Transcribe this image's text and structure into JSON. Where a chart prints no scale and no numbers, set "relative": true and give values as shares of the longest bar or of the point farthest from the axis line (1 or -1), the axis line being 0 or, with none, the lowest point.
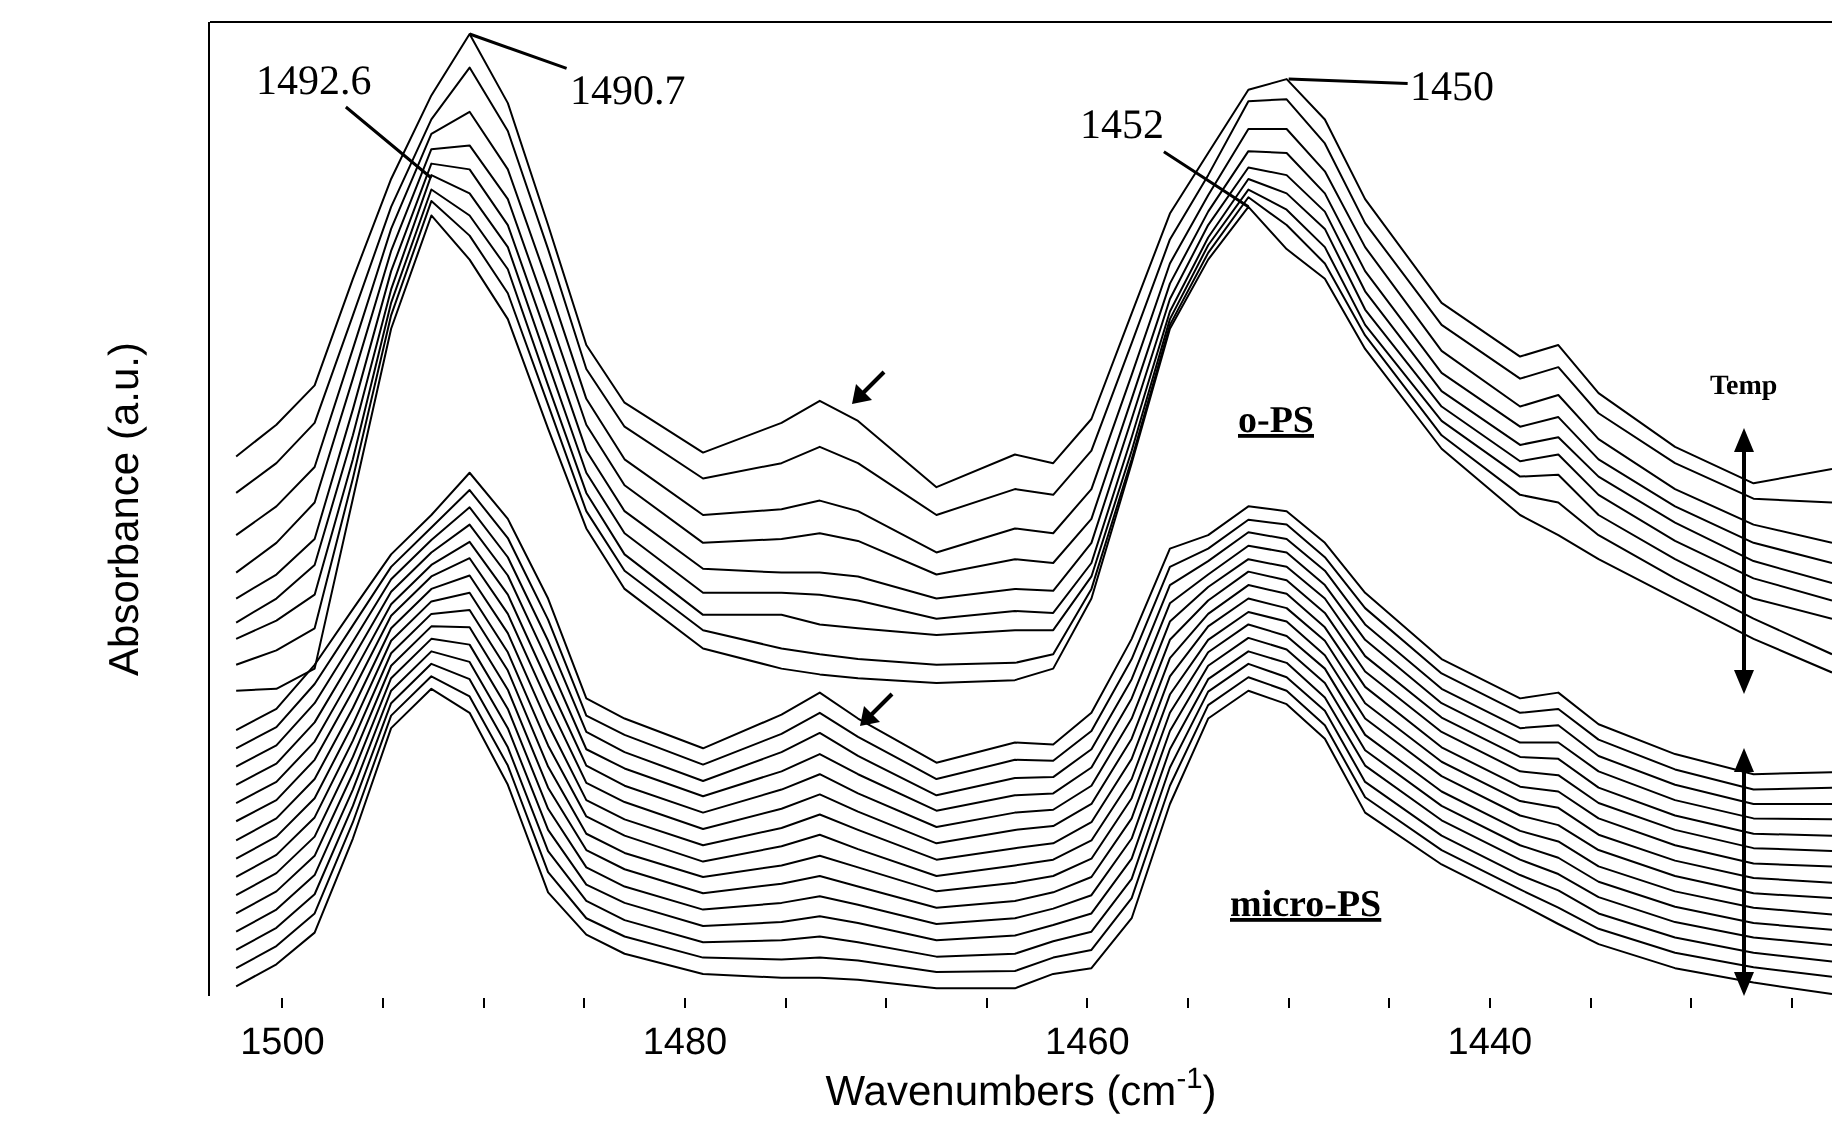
{
  "chart_data": {
    "type": "line",
    "relative": true,
    "xlabel": "Wavenumbers (cm$^{-1}$)",
    "ylabel": "Absorbance (a.u.)",
    "x": [
      1502.3,
      1500.3,
      1498.4,
      1496.5,
      1494.6,
      1492.6,
      1490.7,
      1488.8,
      1486.8,
      1484.9,
      1483.0,
      1479.1,
      1475.2,
      1473.3,
      1471.4,
      1467.5,
      1463.6,
      1461.7,
      1459.8,
      1457.8,
      1455.9,
      1454.0,
      1452.0,
      1450.1,
      1448.2,
      1446.2,
      1442.4,
      1438.5,
      1436.6,
      1434.6,
      1430.8,
      1426.9,
      1423.0
    ],
    "xlim": [
      1503.6,
      1423.0
    ],
    "xticks": [
      1500,
      {
        "value": 1495,
        "label": null
      },
      {
        "value": 1490,
        "label": null
      },
      {
        "value": 1485,
        "label": null
      },
      1480,
      {
        "value": 1475,
        "label": null
      },
      {
        "value": 1470,
        "label": null
      },
      {
        "value": 1465,
        "label": null
      },
      1460,
      {
        "value": 1455,
        "label": null
      },
      {
        "value": 1450,
        "label": null
      },
      {
        "value": 1445,
        "label": null
      },
      1440,
      {
        "value": 1435,
        "label": null
      },
      {
        "value": 1430,
        "label": null
      },
      {
        "value": 1425,
        "label": null
      }
    ],
    "annotations": [
      {
        "text": "1492.6",
        "x": 1492.6,
        "y": 0.85
      },
      {
        "text": "1490.7",
        "x": 1490.7,
        "y": 1
      },
      {
        "text": "1452",
        "x": 1452,
        "y": 0.82
      },
      {
        "text": "1450",
        "x": 1450,
        "y": 0.953
      },
      "o-PS",
      "micro-PS",
      "Temp"
    ],
    "series": [
      {
        "color": "#000000",
        "values": [
          0.56,
          0.593,
          0.634,
          0.745,
          0.849,
          0.936,
          1.0,
          0.928,
          0.801,
          0.676,
          0.616,
          0.564,
          0.595,
          0.618,
          0.597,
          0.528,
          0.562,
          0.553,
          0.599,
          0.709,
          0.813,
          0.876,
          0.942,
          0.953,
          0.911,
          0.828,
          0.72,
          0.664,
          0.676,
          0.626,
          0.57,
          0.532,
          0.547
        ]
      },
      {
        "color": "#000000",
        "values": [
          0.522,
          0.553,
          0.595,
          0.707,
          0.82,
          0.911,
          0.965,
          0.899,
          0.776,
          0.651,
          0.591,
          0.537,
          0.553,
          0.57,
          0.553,
          0.499,
          0.526,
          0.52,
          0.566,
          0.678,
          0.786,
          0.853,
          0.93,
          0.932,
          0.886,
          0.803,
          0.697,
          0.641,
          0.653,
          0.605,
          0.553,
          0.516,
          0.512
        ]
      },
      {
        "color": "#000000",
        "values": [
          0.478,
          0.508,
          0.549,
          0.672,
          0.797,
          0.896,
          0.919,
          0.859,
          0.74,
          0.62,
          0.557,
          0.499,
          0.505,
          0.514,
          0.503,
          0.46,
          0.485,
          0.48,
          0.526,
          0.645,
          0.761,
          0.832,
          0.901,
          0.901,
          0.857,
          0.778,
          0.67,
          0.612,
          0.624,
          0.578,
          0.526,
          0.489,
          0.47
        ]
      },
      {
        "color": "#000000",
        "values": [
          0.439,
          0.47,
          0.512,
          0.641,
          0.774,
          0.88,
          0.884,
          0.828,
          0.709,
          0.593,
          0.53,
          0.47,
          0.474,
          0.48,
          0.472,
          0.437,
          0.453,
          0.449,
          0.495,
          0.62,
          0.74,
          0.815,
          0.878,
          0.876,
          0.834,
          0.753,
          0.647,
          0.591,
          0.601,
          0.557,
          0.508,
          0.47,
          0.449
        ]
      },
      {
        "color": "#000000",
        "values": [
          0.412,
          0.437,
          0.474,
          0.609,
          0.753,
          0.865,
          0.859,
          0.801,
          0.682,
          0.566,
          0.503,
          0.443,
          0.439,
          0.439,
          0.435,
          0.412,
          0.422,
          0.42,
          0.47,
          0.599,
          0.724,
          0.801,
          0.861,
          0.853,
          0.815,
          0.732,
          0.628,
          0.572,
          0.58,
          0.539,
          0.491,
          0.451,
          0.428
        ]
      },
      {
        "color": "#000000",
        "values": [
          0.387,
          0.412,
          0.447,
          0.582,
          0.734,
          0.853,
          0.834,
          0.778,
          0.657,
          0.543,
          0.48,
          0.418,
          0.418,
          0.416,
          0.41,
          0.391,
          0.399,
          0.397,
          0.449,
          0.58,
          0.711,
          0.788,
          0.849,
          0.834,
          0.797,
          0.713,
          0.612,
          0.555,
          0.562,
          0.52,
          0.472,
          0.433,
          0.41
        ]
      },
      {
        "color": "#000000",
        "values": [
          0.37,
          0.389,
          0.416,
          0.557,
          0.72,
          0.838,
          0.811,
          0.755,
          0.634,
          0.522,
          0.458,
          0.395,
          0.395,
          0.385,
          0.381,
          0.374,
          0.379,
          0.379,
          0.435,
          0.566,
          0.703,
          0.78,
          0.838,
          0.817,
          0.778,
          0.697,
          0.597,
          0.539,
          0.541,
          0.499,
          0.453,
          0.412,
          0.391
        ]
      },
      {
        "color": "#000000",
        "values": [
          0.343,
          0.358,
          0.381,
          0.537,
          0.707,
          0.826,
          0.79,
          0.73,
          0.614,
          0.503,
          0.441,
          0.379,
          0.36,
          0.354,
          0.349,
          0.343,
          0.345,
          0.354,
          0.422,
          0.557,
          0.697,
          0.772,
          0.83,
          0.801,
          0.761,
          0.686,
          0.582,
          0.52,
          0.512,
          0.478,
          0.433,
          0.391,
          0.354
        ]
      },
      {
        "color": "#000000",
        "values": [
          0.316,
          0.318,
          0.339,
          0.516,
          0.693,
          0.811,
          0.765,
          0.703,
          0.589,
          0.485,
          0.422,
          0.36,
          0.339,
          0.333,
          0.329,
          0.324,
          0.327,
          0.339,
          0.412,
          0.553,
          0.693,
          0.765,
          0.82,
          0.776,
          0.745,
          0.672,
          0.568,
          0.499,
          0.478,
          0.453,
          0.412,
          0.37,
          0.335
        ]
      },
      {
        "color": "#000000",
        "values": [
          0.275,
          0.297,
          0.343,
          0.401,
          0.458,
          0.499,
          0.543,
          0.495,
          0.412,
          0.308,
          0.287,
          0.256,
          0.291,
          0.314,
          0.287,
          0.241,
          0.262,
          0.26,
          0.293,
          0.37,
          0.464,
          0.478,
          0.508,
          0.503,
          0.47,
          0.418,
          0.349,
          0.308,
          0.314,
          0.281,
          0.25,
          0.229,
          0.231
        ]
      },
      {
        "color": "#000000",
        "values": [
          0.256,
          0.278,
          0.323,
          0.384,
          0.445,
          0.486,
          0.525,
          0.475,
          0.39,
          0.29,
          0.27,
          0.239,
          0.271,
          0.293,
          0.268,
          0.224,
          0.244,
          0.243,
          0.274,
          0.349,
          0.445,
          0.464,
          0.494,
          0.489,
          0.455,
          0.402,
          0.334,
          0.293,
          0.297,
          0.265,
          0.234,
          0.213,
          0.215
        ]
      },
      {
        "color": "#000000",
        "values": [
          0.237,
          0.259,
          0.303,
          0.367,
          0.432,
          0.473,
          0.507,
          0.455,
          0.368,
          0.273,
          0.252,
          0.222,
          0.252,
          0.272,
          0.248,
          0.207,
          0.225,
          0.226,
          0.255,
          0.328,
          0.426,
          0.451,
          0.481,
          0.474,
          0.441,
          0.385,
          0.318,
          0.277,
          0.28,
          0.248,
          0.218,
          0.198,
          0.198
        ]
      },
      {
        "color": "#000000",
        "values": [
          0.218,
          0.24,
          0.283,
          0.35,
          0.419,
          0.46,
          0.489,
          0.436,
          0.346,
          0.255,
          0.235,
          0.206,
          0.232,
          0.25,
          0.229,
          0.191,
          0.207,
          0.209,
          0.236,
          0.308,
          0.407,
          0.437,
          0.467,
          0.46,
          0.426,
          0.369,
          0.303,
          0.262,
          0.262,
          0.232,
          0.202,
          0.183,
          0.182
        ]
      },
      {
        "color": "#000000",
        "values": [
          0.199,
          0.221,
          0.263,
          0.333,
          0.406,
          0.447,
          0.471,
          0.416,
          0.324,
          0.238,
          0.217,
          0.189,
          0.213,
          0.229,
          0.209,
          0.174,
          0.189,
          0.192,
          0.217,
          0.287,
          0.388,
          0.424,
          0.453,
          0.445,
          0.412,
          0.352,
          0.288,
          0.247,
          0.245,
          0.215,
          0.186,
          0.167,
          0.165
        ]
      },
      {
        "color": "#000000",
        "values": [
          0.18,
          0.202,
          0.244,
          0.316,
          0.394,
          0.435,
          0.454,
          0.396,
          0.303,
          0.22,
          0.2,
          0.172,
          0.193,
          0.208,
          0.19,
          0.157,
          0.171,
          0.175,
          0.198,
          0.266,
          0.369,
          0.41,
          0.44,
          0.431,
          0.397,
          0.336,
          0.273,
          0.232,
          0.228,
          0.199,
          0.171,
          0.152,
          0.149
        ]
      },
      {
        "color": "#000000",
        "values": [
          0.16,
          0.183,
          0.224,
          0.298,
          0.381,
          0.422,
          0.436,
          0.376,
          0.281,
          0.202,
          0.182,
          0.155,
          0.173,
          0.187,
          0.171,
          0.14,
          0.152,
          0.157,
          0.179,
          0.245,
          0.35,
          0.396,
          0.426,
          0.417,
          0.382,
          0.32,
          0.257,
          0.216,
          0.211,
          0.183,
          0.155,
          0.136,
          0.133
        ]
      },
      {
        "color": "#000000",
        "values": [
          0.141,
          0.164,
          0.204,
          0.281,
          0.368,
          0.409,
          0.418,
          0.356,
          0.259,
          0.185,
          0.165,
          0.138,
          0.154,
          0.166,
          0.151,
          0.123,
          0.134,
          0.14,
          0.16,
          0.224,
          0.331,
          0.383,
          0.412,
          0.402,
          0.368,
          0.303,
          0.242,
          0.201,
          0.194,
          0.166,
          0.139,
          0.121,
          0.116
        ]
      },
      {
        "color": "#000000",
        "values": [
          0.122,
          0.145,
          0.184,
          0.264,
          0.355,
          0.396,
          0.4,
          0.337,
          0.237,
          0.167,
          0.147,
          0.122,
          0.134,
          0.144,
          0.132,
          0.107,
          0.116,
          0.123,
          0.141,
          0.204,
          0.312,
          0.369,
          0.398,
          0.388,
          0.353,
          0.287,
          0.227,
          0.186,
          0.176,
          0.15,
          0.123,
          0.105,
          0.1
        ]
      },
      {
        "color": "#000000",
        "values": [
          0.103,
          0.126,
          0.164,
          0.247,
          0.342,
          0.383,
          0.382,
          0.317,
          0.215,
          0.15,
          0.13,
          0.105,
          0.115,
          0.123,
          0.112,
          0.09,
          0.097,
          0.106,
          0.122,
          0.183,
          0.293,
          0.356,
          0.385,
          0.373,
          0.339,
          0.27,
          0.211,
          0.17,
          0.159,
          0.133,
          0.107,
          0.09,
          0.083
        ]
      },
      {
        "color": "#000000",
        "values": [
          0.084,
          0.107,
          0.144,
          0.23,
          0.329,
          0.37,
          0.364,
          0.297,
          0.193,
          0.132,
          0.112,
          0.088,
          0.095,
          0.102,
          0.093,
          0.073,
          0.079,
          0.089,
          0.103,
          0.162,
          0.274,
          0.342,
          0.371,
          0.359,
          0.324,
          0.254,
          0.196,
          0.155,
          0.142,
          0.117,
          0.091,
          0.074,
          0.067
        ]
      },
      {
        "color": "#000000",
        "values": [
          0.065,
          0.088,
          0.124,
          0.213,
          0.316,
          0.357,
          0.346,
          0.277,
          0.171,
          0.114,
          0.095,
          0.071,
          0.075,
          0.081,
          0.074,
          0.056,
          0.061,
          0.072,
          0.084,
          0.141,
          0.255,
          0.328,
          0.357,
          0.345,
          0.309,
          0.238,
          0.181,
          0.14,
          0.125,
          0.101,
          0.075,
          0.059,
          0.051
        ]
      },
      {
        "color": "#000000",
        "values": [
          0.046,
          0.069,
          0.104,
          0.196,
          0.303,
          0.344,
          0.328,
          0.257,
          0.149,
          0.097,
          0.077,
          0.054,
          0.056,
          0.06,
          0.054,
          0.039,
          0.042,
          0.055,
          0.065,
          0.12,
          0.236,
          0.315,
          0.344,
          0.33,
          0.295,
          0.221,
          0.165,
          0.124,
          0.108,
          0.084,
          0.059,
          0.043,
          0.034
        ]
      },
      {
        "color": "#000000",
        "values": [
          0.027,
          0.05,
          0.084,
          0.179,
          0.29,
          0.331,
          0.31,
          0.238,
          0.127,
          0.079,
          0.06,
          0.038,
          0.036,
          0.038,
          0.035,
          0.023,
          0.024,
          0.038,
          0.046,
          0.1,
          0.217,
          0.301,
          0.33,
          0.316,
          0.28,
          0.205,
          0.15,
          0.109,
          0.09,
          0.068,
          0.043,
          0.028,
          0.018
        ]
      },
      {
        "color": "#000000",
        "values": [
          0.008,
          0.031,
          0.064,
          0.162,
          0.277,
          0.318,
          0.293,
          0.218,
          0.106,
          0.062,
          0.042,
          0.021,
          0.017,
          0.017,
          0.015,
          0.006,
          0.006,
          0.021,
          0.027,
          0.079,
          0.198,
          0.287,
          0.316,
          0.302,
          0.266,
          0.189,
          0.135,
          0.094,
          0.073,
          0.052,
          0.027,
          0.012,
          0
        ]
      }
    ]
  }
}
